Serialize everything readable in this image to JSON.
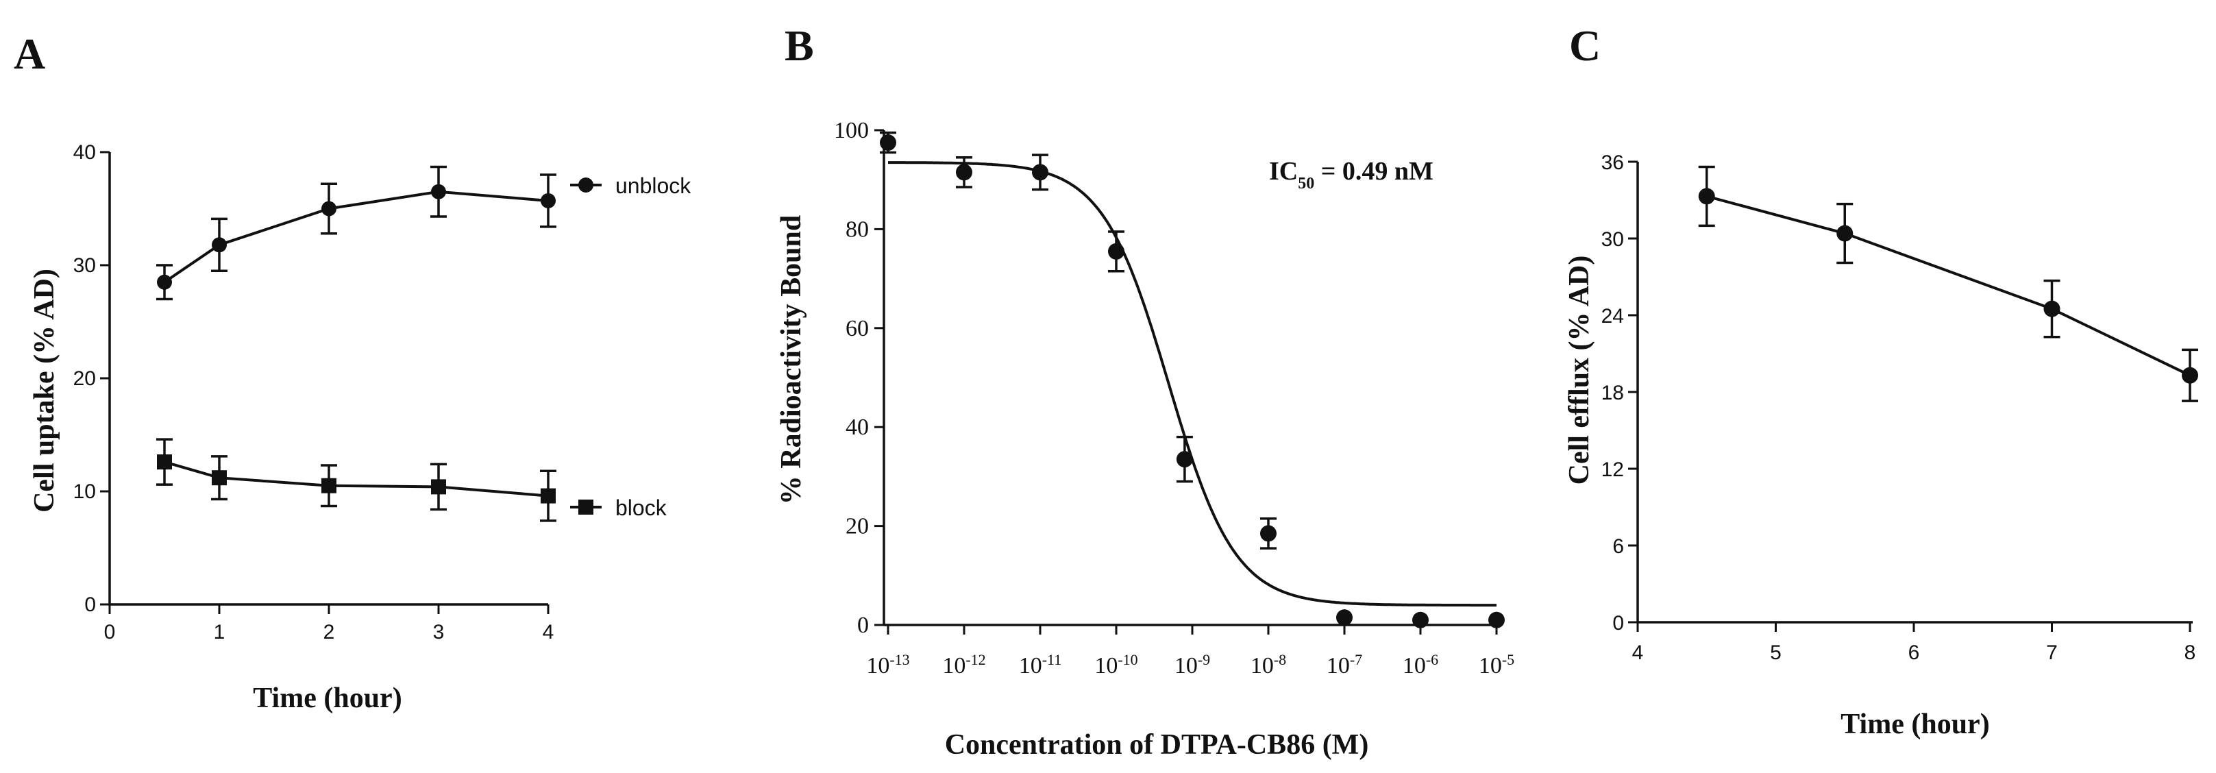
{
  "chart_data": [
    {
      "panel": "A",
      "type": "line",
      "title": "",
      "xlabel": "Time (hour)",
      "ylabel": "Cell uptake (% AD)",
      "xlim": [
        0,
        4
      ],
      "ylim": [
        0,
        40
      ],
      "xticks": [
        0,
        1,
        2,
        3,
        4
      ],
      "yticks": [
        0,
        10,
        20,
        30,
        40
      ],
      "x": [
        0.5,
        1,
        2,
        3,
        4
      ],
      "series": [
        {
          "name": "unblock",
          "marker": "circle",
          "values": [
            28.5,
            31.8,
            35.0,
            36.5,
            35.7
          ],
          "errors": [
            1.5,
            2.3,
            2.2,
            2.2,
            2.3
          ]
        },
        {
          "name": "block",
          "marker": "square",
          "values": [
            12.6,
            11.2,
            10.5,
            10.4,
            9.6
          ],
          "errors": [
            2.0,
            1.9,
            1.8,
            2.0,
            2.2
          ]
        }
      ],
      "legend": "right"
    },
    {
      "panel": "B",
      "type": "scatter",
      "title": "",
      "xlabel": "Concentration of DTPA-CB86 (M)",
      "ylabel": "% Radioactivity Bound",
      "xscale": "log",
      "xlim_exponent": [
        -13,
        -5
      ],
      "ylim": [
        0,
        100
      ],
      "yticks": [
        0,
        20,
        40,
        60,
        80,
        100
      ],
      "xtick_labels": [
        {
          "base": "10",
          "exp": "-13"
        },
        {
          "base": "10",
          "exp": "-12"
        },
        {
          "base": "10",
          "exp": "-11"
        },
        {
          "base": "10",
          "exp": "-10"
        },
        {
          "base": "10",
          "exp": "-9"
        },
        {
          "base": "10",
          "exp": "-8"
        },
        {
          "base": "10",
          "exp": "-7"
        },
        {
          "base": "10",
          "exp": "-6"
        },
        {
          "base": "10",
          "exp": "-5"
        }
      ],
      "x_log10": [
        -13,
        -12,
        -11,
        -10,
        -9.1,
        -8,
        -7,
        -6,
        -5
      ],
      "values": [
        97.5,
        91.5,
        91.5,
        75.5,
        33.5,
        18.5,
        1.5,
        1.0,
        1.0
      ],
      "errors": [
        2.0,
        3.0,
        3.5,
        4.0,
        4.5,
        3.0,
        0,
        0,
        0
      ],
      "fit": {
        "model": "sigmoid",
        "top": 93.5,
        "bottom": 4.0,
        "log_ic50": -9.31,
        "hill_slope": -1.0
      },
      "annotation": {
        "label": "IC",
        "sub": "50",
        "value": " = 0.49 nM"
      }
    },
    {
      "panel": "C",
      "type": "line",
      "title": "",
      "xlabel": "Time (hour)",
      "ylabel": "Cell efflux (% AD)",
      "xlim": [
        4,
        8
      ],
      "ylim": [
        0,
        36
      ],
      "xticks": [
        4,
        5,
        6,
        7,
        8
      ],
      "yticks": [
        0,
        6,
        12,
        18,
        24,
        30,
        36
      ],
      "x": [
        4.5,
        5.5,
        7,
        8
      ],
      "values": [
        33.3,
        30.4,
        24.5,
        19.3
      ],
      "errors": [
        2.3,
        2.3,
        2.2,
        2.0
      ]
    }
  ],
  "colors": {
    "ink": "#111111",
    "background": "#ffffff"
  }
}
